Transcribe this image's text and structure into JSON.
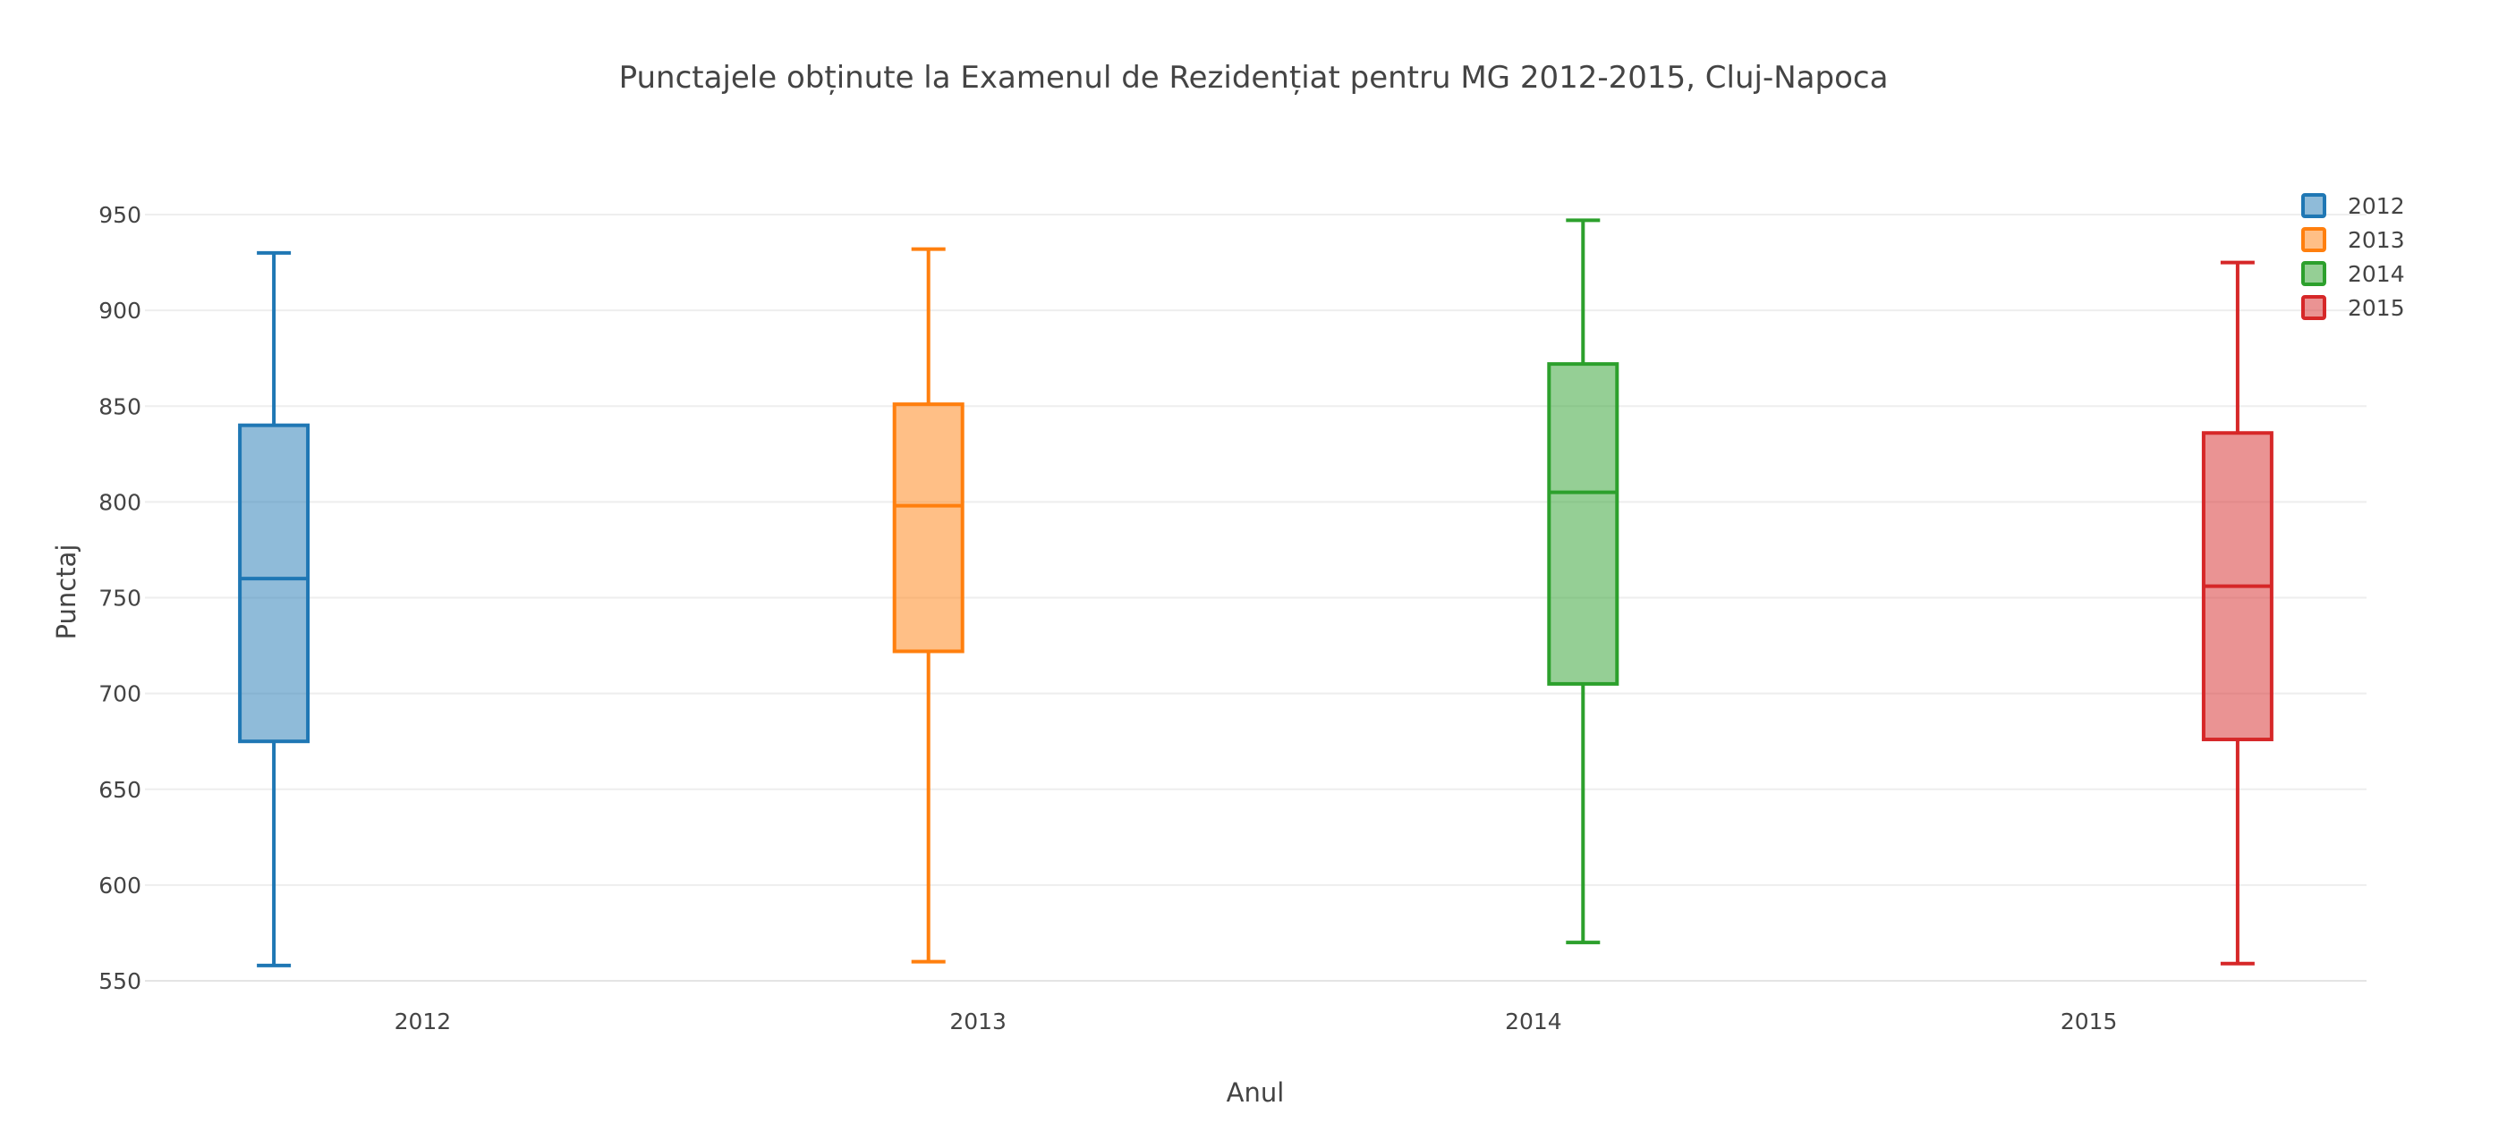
{
  "chart_data": {
    "type": "box",
    "title": "Punctajele obținute la Examenul de Rezidențiat pentru MG 2012-2015, Cluj-Napoca",
    "xlabel": "Anul",
    "ylabel": "Punctaj",
    "categories": [
      "2012",
      "2013",
      "2014",
      "2015"
    ],
    "y_ticks": [
      550,
      600,
      650,
      700,
      750,
      800,
      850,
      900,
      950
    ],
    "ylim": [
      550,
      960
    ],
    "grid": true,
    "legend_position": "top-right",
    "series": [
      {
        "name": "2012",
        "color": "#1f77b4",
        "min": 558,
        "q1": 675,
        "median": 760,
        "q3": 840,
        "max": 930
      },
      {
        "name": "2013",
        "color": "#ff7f0e",
        "min": 560,
        "q1": 722,
        "median": 798,
        "q3": 851,
        "max": 932
      },
      {
        "name": "2014",
        "color": "#2ca02c",
        "min": 570,
        "q1": 705,
        "median": 805,
        "q3": 872,
        "max": 947
      },
      {
        "name": "2015",
        "color": "#d62728",
        "min": 559,
        "q1": 676,
        "median": 756,
        "q3": 836,
        "max": 925
      }
    ]
  }
}
